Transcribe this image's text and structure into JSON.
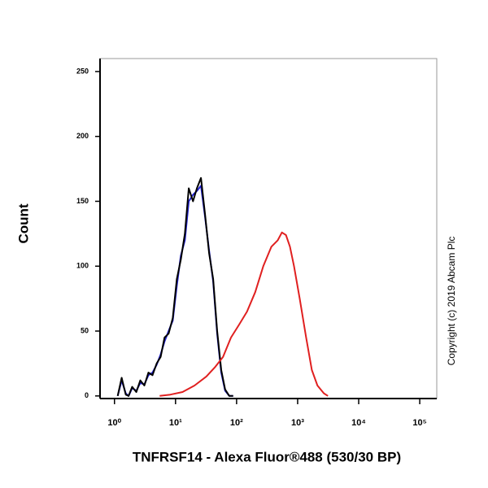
{
  "chart_data": {
    "type": "line",
    "xlabel": "TNFRSF14 - Alexa Fluor®488 (530/30 BP)",
    "ylabel": "Count",
    "annotation": "Copyright (c) 2019 Abcam Plc",
    "xscale": "log",
    "xlim": [
      0.58,
      190000
    ],
    "ylim": [
      -2,
      260
    ],
    "xticks": [
      {
        "value": 1,
        "label": "10⁰"
      },
      {
        "value": 10,
        "label": "10¹"
      },
      {
        "value": 100,
        "label": "10²"
      },
      {
        "value": 1000,
        "label": "10³"
      },
      {
        "value": 10000,
        "label": "10⁴"
      },
      {
        "value": 100000,
        "label": "10⁵"
      }
    ],
    "yticks": [
      0,
      50,
      100,
      150,
      200,
      250
    ],
    "series": [
      {
        "color": "#2020d0",
        "x": [
          1.13,
          1.31,
          1.53,
          1.7,
          1.95,
          2.28,
          2.65,
          3.09,
          3.6,
          4.2,
          4.9,
          5.7,
          6.6,
          7.7,
          9.0,
          10.5,
          12.2,
          14.2,
          16.5,
          19.3,
          22.4,
          26.1,
          30.4,
          35.5,
          41.3,
          48,
          56,
          65,
          76,
          88
        ],
        "values": [
          0,
          12,
          2,
          0,
          6,
          4,
          10,
          9,
          16,
          18,
          24,
          32,
          42,
          50,
          58,
          85,
          108,
          120,
          150,
          155,
          158,
          162,
          138,
          112,
          88,
          48,
          18,
          4,
          0,
          0
        ]
      },
      {
        "color": "#000000",
        "x": [
          1.13,
          1.31,
          1.53,
          1.7,
          1.95,
          2.28,
          2.65,
          3.09,
          3.6,
          4.2,
          4.9,
          5.7,
          6.6,
          7.7,
          9.0,
          10.5,
          12.2,
          14.2,
          16.5,
          19.3,
          22.4,
          26.1,
          30.4,
          35.5,
          41.3,
          48,
          56,
          65,
          76,
          88
        ],
        "values": [
          0,
          14,
          1,
          0,
          7,
          3,
          12,
          8,
          18,
          16,
          25,
          30,
          45,
          48,
          60,
          90,
          105,
          125,
          160,
          150,
          160,
          168,
          140,
          110,
          90,
          50,
          20,
          5,
          0,
          0
        ]
      },
      {
        "color": "#e02020",
        "x": [
          5.5,
          8.2,
          13,
          20.5,
          32,
          44,
          60,
          81,
          110,
          148,
          202,
          274,
          372,
          473,
          552,
          643,
          748,
          872,
          1080,
          1380,
          1710,
          2110,
          2690,
          3140
        ],
        "values": [
          0,
          1,
          3,
          8,
          15,
          22,
          30,
          45,
          55,
          65,
          80,
          100,
          115,
          120,
          126,
          124,
          115,
          100,
          75,
          45,
          20,
          8,
          2,
          0
        ]
      }
    ]
  }
}
